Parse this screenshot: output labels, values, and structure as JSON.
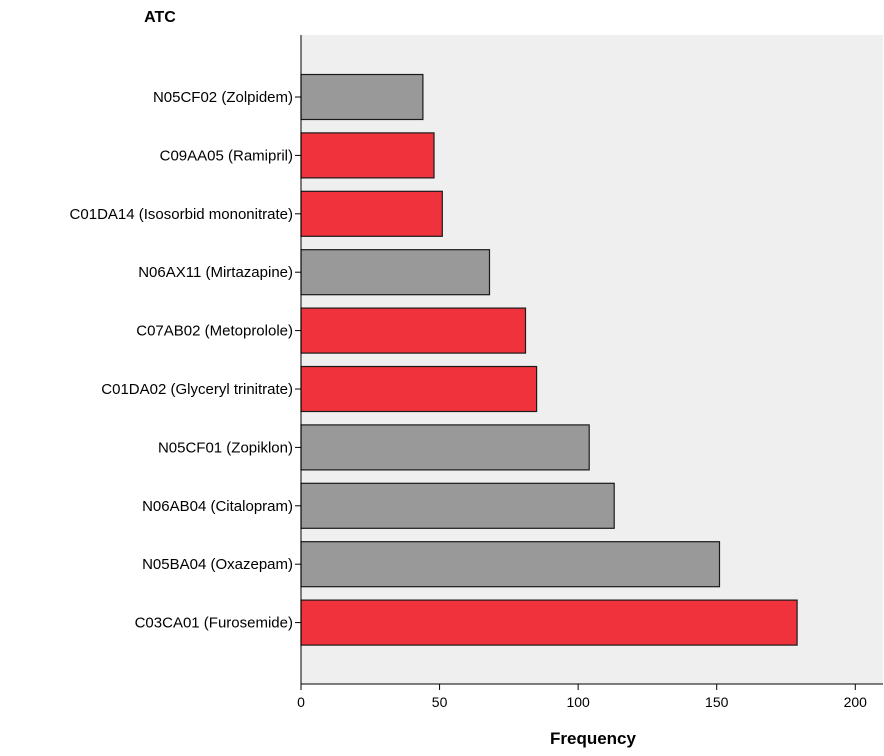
{
  "chart_data": {
    "type": "bar",
    "orientation": "horizontal",
    "y_axis_title": "ATC",
    "xlabel": "Frequency",
    "xlim": [
      0,
      210
    ],
    "x_ticks": [
      0,
      50,
      100,
      150,
      200
    ],
    "grid": false,
    "legend": "none",
    "plot_background": "#efefef",
    "categories": [
      "N05CF02 (Zolpidem)",
      "C09AA05 (Ramipril)",
      "C01DA14 (Isosorbid mononitrate)",
      "N06AX11 (Mirtazapine)",
      "C07AB02 (Metoprolole)",
      "C01DA02 (Glyceryl trinitrate)",
      "N05CF01 (Zopiklon)",
      "N06AB04 (Citalopram)",
      "N05BA04 (Oxazepam)",
      "C03CA01 (Furosemide)"
    ],
    "values": [
      44,
      48,
      51,
      68,
      81,
      85,
      104,
      113,
      151,
      179
    ],
    "bar_colors": [
      "#999999",
      "#f0323c",
      "#f0323c",
      "#999999",
      "#f0323c",
      "#f0323c",
      "#999999",
      "#999999",
      "#999999",
      "#f0323c"
    ]
  }
}
